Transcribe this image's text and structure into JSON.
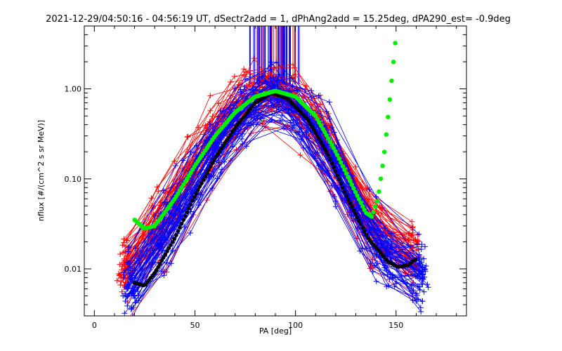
{
  "colors": {
    "background": "#ffffff",
    "axis": "#000000",
    "red_series": "#ff0000",
    "blue_series": "#0000ff",
    "green_fit": "#00ee00",
    "black_fit": "#000000"
  },
  "chart_data": {
    "type": "line",
    "title": "2021-12-29/04:50:16 - 04:56:19 UT, dSectr2add = 1, dPhAng2add = 15.25deg, dPA290_est=  -0.9deg",
    "xlabel": "PA [deg]",
    "ylabel": "nflux [#/(cm^2 s sr MeV)]",
    "xlim": [
      -5,
      185
    ],
    "ylim": [
      0.003,
      5.0
    ],
    "yscale": "log",
    "xticks": [
      0,
      50,
      100,
      150
    ],
    "xtick_labels": [
      "0",
      "50",
      "100",
      "150"
    ],
    "yticks": [
      0.01,
      0.1,
      1.0
    ],
    "ytick_labels": [
      "0.01",
      "0.10",
      "1.00"
    ],
    "grid": false,
    "series": [
      {
        "color": "red",
        "marker": "plus",
        "description_free": true,
        "curve_count": 60,
        "x": [
          15,
          20,
          28,
          38,
          48,
          58,
          68,
          78,
          88,
          98,
          108,
          118,
          128,
          138,
          148,
          158
        ],
        "y": [
          0.009,
          0.012,
          0.022,
          0.05,
          0.12,
          0.26,
          0.5,
          0.85,
          1.0,
          0.82,
          0.45,
          0.2,
          0.07,
          0.028,
          0.018,
          0.014
        ]
      },
      {
        "color": "blue",
        "marker": "plus",
        "curve_count": 60,
        "x": [
          18,
          23,
          30,
          40,
          50,
          60,
          70,
          80,
          90,
          100,
          110,
          120,
          130,
          140,
          150,
          162
        ],
        "y": [
          0.006,
          0.009,
          0.016,
          0.04,
          0.1,
          0.22,
          0.45,
          0.8,
          0.95,
          0.75,
          0.38,
          0.16,
          0.05,
          0.02,
          0.012,
          0.009
        ]
      },
      {
        "color": "green",
        "marker": "dot",
        "x": [
          20,
          25,
          30,
          40,
          50,
          60,
          70,
          80,
          90,
          100,
          110,
          120,
          130,
          135,
          138,
          141,
          144,
          147,
          150
        ],
        "y": [
          0.035,
          0.028,
          0.03,
          0.06,
          0.14,
          0.3,
          0.55,
          0.82,
          0.95,
          0.82,
          0.5,
          0.2,
          0.07,
          0.042,
          0.038,
          0.06,
          0.18,
          0.8,
          4.0
        ]
      },
      {
        "color": "black",
        "marker": "dot",
        "x": [
          20,
          25,
          30,
          40,
          50,
          60,
          70,
          80,
          88,
          96,
          106,
          116,
          126,
          136,
          146,
          151,
          156,
          160
        ],
        "y": [
          0.007,
          0.0065,
          0.009,
          0.022,
          0.065,
          0.17,
          0.37,
          0.7,
          0.9,
          0.78,
          0.46,
          0.19,
          0.06,
          0.022,
          0.012,
          0.0105,
          0.011,
          0.013
        ]
      }
    ],
    "vertical_spikes": {
      "x_range": [
        77,
        102
      ],
      "y_from": 1.12,
      "note_free": true
    }
  }
}
